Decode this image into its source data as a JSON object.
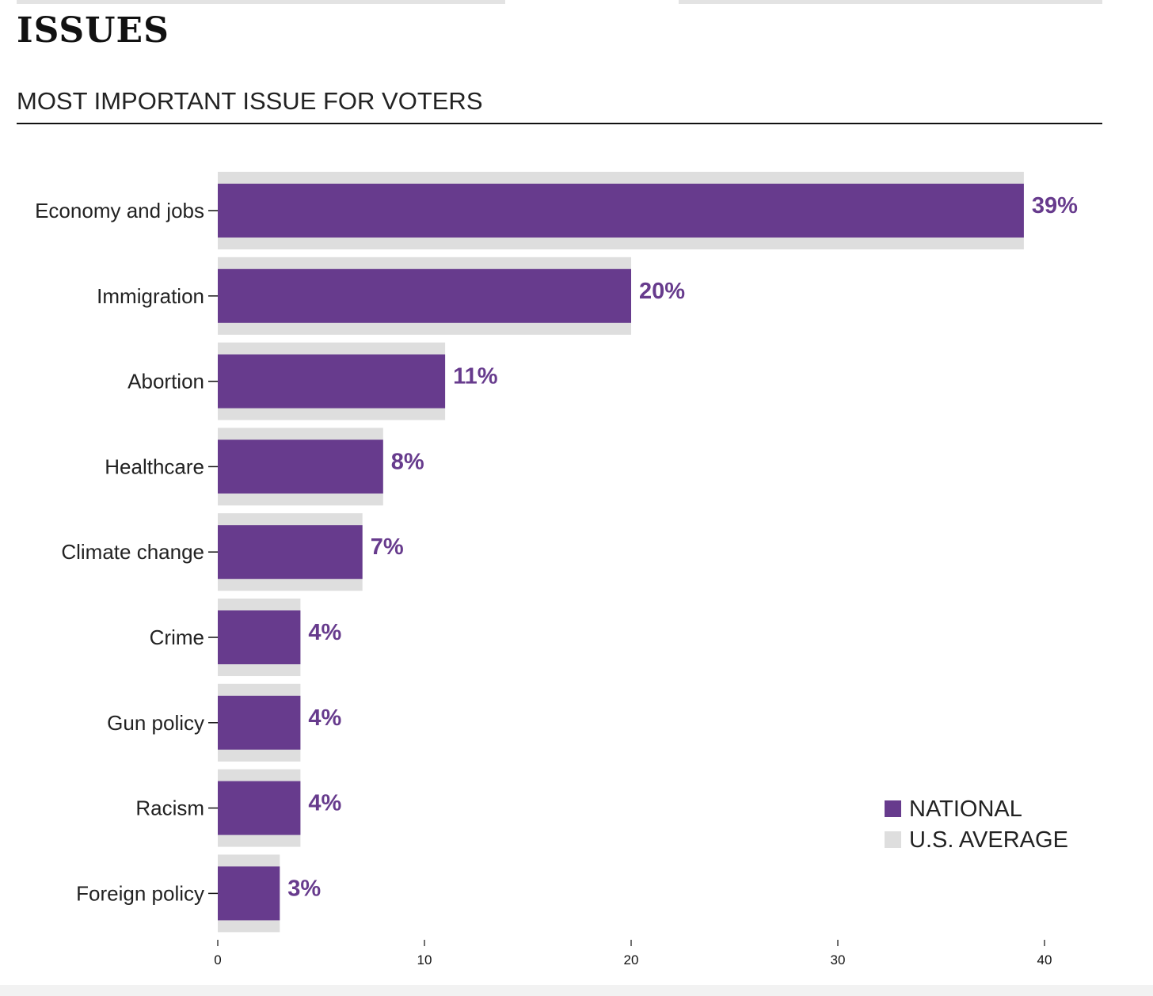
{
  "section_title": "ISSUES",
  "chart_heading": "MOST IMPORTANT ISSUE FOR VOTERS",
  "colors": {
    "national": "#673b8d",
    "us_average": "#dedede",
    "text": "#222222",
    "axis": "#111111"
  },
  "chart_data": {
    "type": "bar",
    "orientation": "horizontal",
    "title": "MOST IMPORTANT ISSUE FOR VOTERS",
    "categories": [
      "Economy and jobs",
      "Immigration",
      "Abortion",
      "Healthcare",
      "Climate change",
      "Crime",
      "Gun policy",
      "Racism",
      "Foreign policy"
    ],
    "series": [
      {
        "name": "NATIONAL",
        "values": [
          39,
          20,
          11,
          8,
          7,
          4,
          4,
          4,
          3
        ]
      },
      {
        "name": "U.S. AVERAGE",
        "values": [
          39,
          20,
          11,
          8,
          7,
          4,
          4,
          4,
          3
        ]
      }
    ],
    "value_labels": [
      "39%",
      "20%",
      "11%",
      "8%",
      "7%",
      "4%",
      "4%",
      "4%",
      "3%"
    ],
    "x_ticks": [
      0,
      10,
      20,
      30,
      40
    ],
    "xlim": [
      0,
      40
    ],
    "grid": false,
    "legend_position": "bottom-right"
  }
}
